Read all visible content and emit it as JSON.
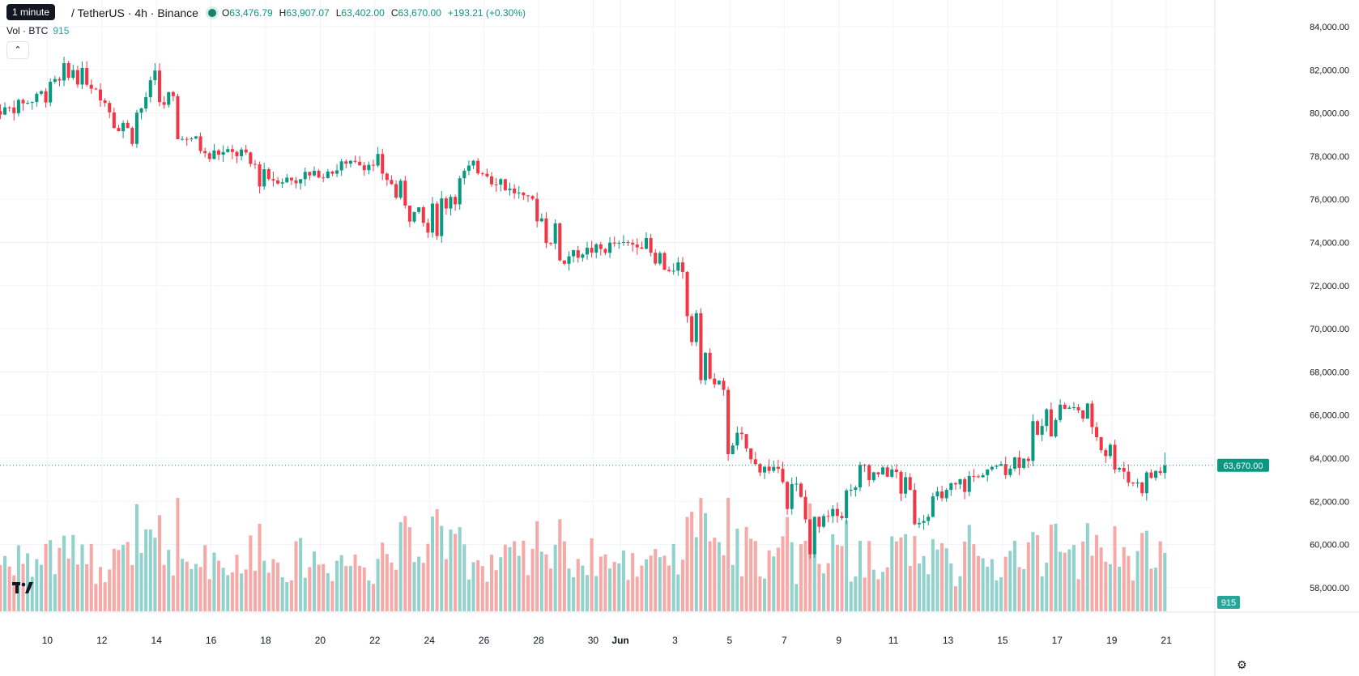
{
  "header": {
    "tooltip": "1 minute",
    "symbol": "/ TetherUS · 4h · Binance",
    "ohlc": [
      {
        "k": "O",
        "v": "63,476.79"
      },
      {
        "k": "H",
        "v": "63,907.07"
      },
      {
        "k": "L",
        "v": "63,402.00"
      },
      {
        "k": "C",
        "v": "63,670.00"
      }
    ],
    "change": "+193.21 (+0.30%)",
    "volume_label": "Vol · BTC",
    "volume_value": "915"
  },
  "colors": {
    "up": "#089981",
    "down": "#f23645",
    "vol_up": "#92d2cc",
    "vol_down": "#f7a9a7",
    "grid": "#f0f3fa"
  },
  "icons": {
    "collapse": "chevron-up-icon",
    "logo": "tradingview-logo-icon",
    "settings": "gear-icon"
  },
  "chart_data": {
    "type": "candlestick",
    "interval": "4h",
    "y_range": [
      56800,
      84400
    ],
    "y_ticks": [
      "84,000.00",
      "82,000.00",
      "80,000.00",
      "78,000.00",
      "76,000.00",
      "74,000.00",
      "72,000.00",
      "70,000.00",
      "68,000.00",
      "66,000.00",
      "64,000.00",
      "62,000.00",
      "60,000.00",
      "58,000.00"
    ],
    "y_tick_values": [
      84000,
      82000,
      80000,
      78000,
      76000,
      74000,
      72000,
      70000,
      68000,
      66000,
      64000,
      62000,
      60000,
      58000
    ],
    "x_ticks": [
      "10",
      "12",
      "14",
      "16",
      "18",
      "20",
      "22",
      "24",
      "26",
      "28",
      "30",
      "Jun",
      "3",
      "5",
      "7",
      "9",
      "11",
      "13",
      "15",
      "17",
      "19",
      "21"
    ],
    "x_tick_day_index": [
      2,
      4,
      6,
      8,
      10,
      12,
      14,
      16,
      18,
      20,
      22,
      23,
      25,
      27,
      29,
      31,
      33,
      35,
      37,
      39,
      41,
      43
    ],
    "current_price": 63670,
    "current_price_label": "63,670.00",
    "current_volume_label": "915",
    "daily_closes": [
      80000,
      80400,
      80900,
      82000,
      81000,
      79200,
      81200,
      79000,
      78200,
      78100,
      77000,
      76900,
      77200,
      77600,
      77600,
      76200,
      74700,
      76800,
      77600,
      76500,
      75500,
      73400,
      73600,
      73900,
      74000,
      72500,
      68800,
      65200,
      63700,
      63300,
      60600,
      61600,
      63200,
      63400,
      61400,
      62300,
      63100,
      63600,
      64200,
      66500,
      66100,
      64300,
      62700,
      63670
    ],
    "volume_scale": [
      0,
      28000
    ],
    "volume_note": "relative height of volume bars"
  }
}
